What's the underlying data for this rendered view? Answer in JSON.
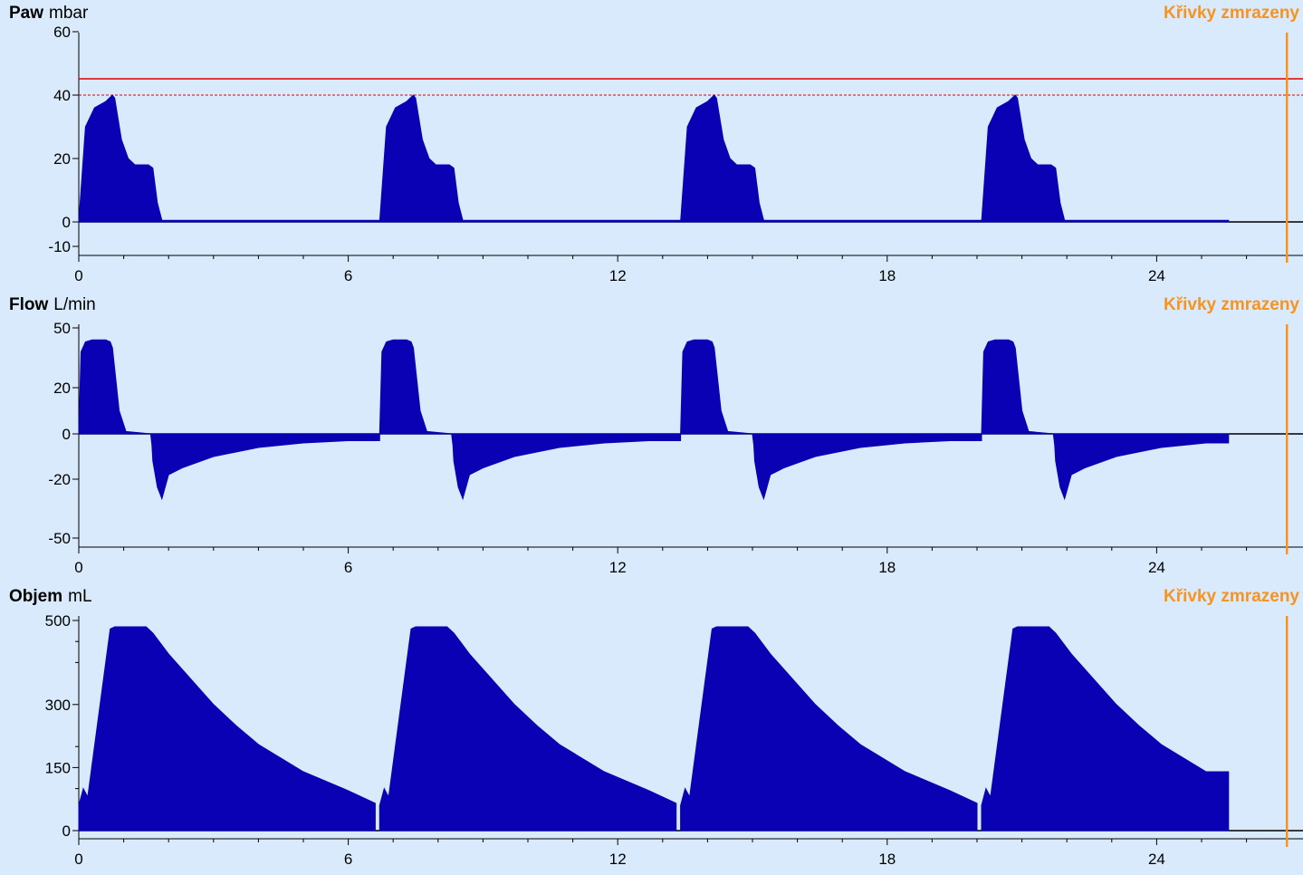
{
  "panels": [
    {
      "name": "Paw",
      "unit": "mbar",
      "status": "Křivky zmrazeny"
    },
    {
      "name": "Flow",
      "unit": "L/min",
      "status": "Křivky zmrazeny"
    },
    {
      "name": "Objem",
      "unit": "mL",
      "status": "Křivky zmrazeny"
    }
  ],
  "colors": {
    "waveform": "#0a00b4",
    "background": "#d8eafb",
    "freeze_marker": "#f7931e",
    "alarm": "#e00000"
  },
  "chart_data": [
    {
      "type": "area",
      "title": "Paw",
      "ylabel": "mbar",
      "xlabel": "",
      "x_ticks": [
        "0",
        "6",
        "12",
        "18",
        "24"
      ],
      "y_ticks": [
        "60",
        "40",
        "20",
        "0",
        "-10"
      ],
      "ylim": [
        -10,
        60
      ],
      "xlim": [
        0,
        27
      ],
      "freeze_marker_x": 26.9,
      "alarm_upper_limit": 45,
      "alarm_dashed_limit": 40,
      "breath_starts": [
        0,
        6.7,
        13.4,
        20.1
      ],
      "breath_waveform": {
        "t": [
          0,
          0.15,
          0.35,
          0.6,
          0.75,
          0.8,
          0.95,
          1.1,
          1.25,
          1.4,
          1.55,
          1.65,
          1.75,
          1.85,
          6.7
        ],
        "y": [
          0,
          30,
          36,
          38,
          40,
          39,
          26,
          20,
          18,
          18,
          18,
          17,
          6,
          0.5,
          0.5
        ]
      },
      "end_time": 25.6
    },
    {
      "type": "area",
      "title": "Flow",
      "ylabel": "L/min",
      "xlabel": "",
      "x_ticks": [
        "0",
        "6",
        "12",
        "18",
        "24"
      ],
      "y_ticks": [
        "50",
        "20",
        "0",
        "-20",
        "-50"
      ],
      "ylim": [
        -50,
        50
      ],
      "xlim": [
        0,
        27
      ],
      "freeze_marker_x": 26.9,
      "breath_starts": [
        0,
        6.7,
        13.4,
        20.1
      ],
      "breath_waveform": {
        "t": [
          0,
          0.05,
          0.15,
          0.3,
          0.6,
          0.7,
          0.75,
          0.9,
          1.05,
          1.6,
          1.63,
          1.65,
          1.75,
          1.85,
          2.0,
          2.3,
          3.0,
          4.0,
          5.0,
          6.0,
          6.7
        ],
        "y": [
          0,
          38,
          43,
          44,
          44,
          43,
          40,
          10,
          1,
          0,
          -5,
          -12,
          -24,
          -30,
          -18,
          -15,
          -10,
          -6,
          -4,
          -3,
          -3
        ]
      },
      "end_time": 25.6
    },
    {
      "type": "area",
      "title": "Objem",
      "ylabel": "mL",
      "xlabel": "",
      "x_ticks": [
        "0",
        "6",
        "12",
        "18",
        "24"
      ],
      "y_ticks": [
        "500",
        "300",
        "150",
        "0"
      ],
      "ylim": [
        -20,
        500
      ],
      "xlim": [
        0,
        27
      ],
      "freeze_marker_x": 26.9,
      "breath_starts": [
        0,
        6.7,
        13.4,
        20.1
      ],
      "breath_waveform": {
        "t": [
          0,
          0.1,
          0.2,
          0.7,
          0.8,
          1.5,
          1.65,
          2.0,
          2.5,
          3.0,
          3.5,
          4.0,
          5.0,
          6.0,
          6.6
        ],
        "y": [
          60,
          100,
          80,
          480,
          485,
          485,
          470,
          420,
          360,
          300,
          250,
          205,
          140,
          95,
          65
        ]
      },
      "end_time": 25.6
    }
  ]
}
